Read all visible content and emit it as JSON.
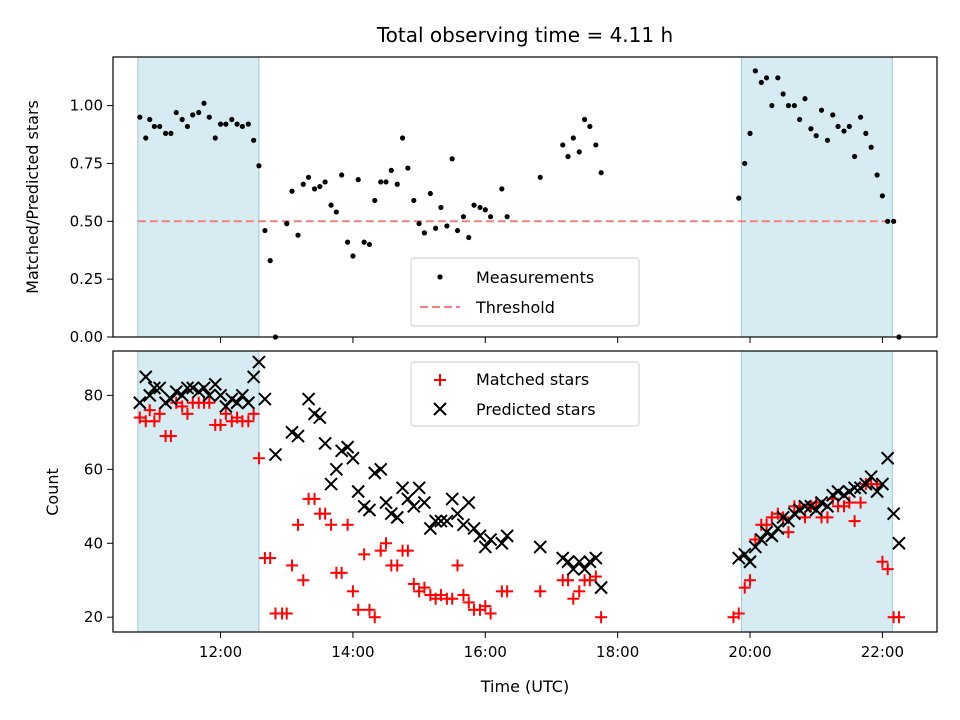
{
  "chart_data": [
    {
      "type": "scatter",
      "title": "Total observing time = 4.11 h",
      "ylabel": "Matched/Predicted stars",
      "xlim": [
        10.375,
        22.825
      ],
      "ylim": [
        0,
        1.21
      ],
      "yticks": [
        0.0,
        0.25,
        0.5,
        0.75,
        1.0
      ],
      "ytick_labels": [
        "0.00",
        "0.25",
        "0.50",
        "0.75",
        "1.00"
      ],
      "shaded_spans": [
        [
          10.75,
          12.58
        ],
        [
          19.87,
          22.15
        ]
      ],
      "threshold": 0.5,
      "legend": {
        "placement": "lower-center",
        "entries": [
          "Measurements",
          "Threshold"
        ]
      },
      "series": [
        {
          "name": "Measurements",
          "x": [
            10.78,
            10.87,
            10.93,
            11.0,
            11.08,
            11.17,
            11.25,
            11.33,
            11.42,
            11.5,
            11.58,
            11.67,
            11.75,
            11.83,
            11.92,
            12.0,
            12.08,
            12.17,
            12.25,
            12.33,
            12.42,
            12.5,
            12.58,
            12.67,
            12.75,
            12.83,
            13.0,
            13.08,
            13.17,
            13.25,
            13.33,
            13.42,
            13.5,
            13.58,
            13.67,
            13.75,
            13.83,
            13.92,
            14.0,
            14.08,
            14.17,
            14.25,
            14.33,
            14.42,
            14.5,
            14.58,
            14.67,
            14.75,
            14.83,
            14.92,
            15.0,
            15.08,
            15.17,
            15.25,
            15.33,
            15.42,
            15.5,
            15.58,
            15.67,
            15.75,
            15.83,
            15.92,
            16.0,
            16.08,
            16.25,
            16.33,
            16.83,
            17.17,
            17.25,
            17.33,
            17.42,
            17.5,
            17.58,
            17.67,
            17.75,
            19.83,
            19.92,
            20.0,
            20.08,
            20.17,
            20.25,
            20.33,
            20.42,
            20.5,
            20.58,
            20.67,
            20.75,
            20.83,
            20.92,
            21.0,
            21.08,
            21.17,
            21.25,
            21.33,
            21.42,
            21.5,
            21.58,
            21.67,
            21.75,
            21.83,
            21.92,
            22.0,
            22.08,
            22.17,
            22.25
          ],
          "y": [
            0.95,
            0.86,
            0.94,
            0.91,
            0.91,
            0.88,
            0.88,
            0.97,
            0.94,
            0.91,
            0.96,
            0.97,
            1.01,
            0.95,
            0.86,
            0.92,
            0.92,
            0.94,
            0.92,
            0.91,
            0.92,
            0.85,
            0.74,
            0.46,
            0.33,
            0.0,
            0.49,
            0.63,
            0.44,
            0.66,
            0.69,
            0.64,
            0.65,
            0.67,
            0.57,
            0.54,
            0.7,
            0.41,
            0.35,
            0.68,
            0.41,
            0.4,
            0.59,
            0.67,
            0.67,
            0.72,
            0.66,
            0.86,
            0.73,
            0.59,
            0.49,
            0.45,
            0.62,
            0.47,
            0.56,
            0.48,
            0.77,
            0.46,
            0.52,
            0.43,
            0.57,
            0.56,
            0.55,
            0.52,
            0.64,
            0.52,
            0.69,
            0.83,
            0.78,
            0.86,
            0.8,
            0.94,
            0.91,
            0.83,
            0.71,
            0.6,
            0.75,
            0.88,
            1.15,
            1.1,
            1.12,
            1.0,
            1.12,
            1.05,
            1.0,
            1.0,
            0.94,
            1.03,
            0.9,
            0.87,
            0.98,
            0.85,
            0.96,
            0.91,
            0.89,
            0.91,
            0.78,
            0.95,
            0.88,
            0.82,
            0.7,
            0.61,
            0.5,
            0.5,
            0.0
          ]
        }
      ]
    },
    {
      "type": "scatter",
      "xlabel": "Time (UTC)",
      "ylabel": "Count",
      "xlim": [
        10.375,
        22.825
      ],
      "ylim": [
        16.0,
        92.0
      ],
      "yticks": [
        20,
        40,
        60,
        80
      ],
      "ytick_labels": [
        "20",
        "40",
        "60",
        "80"
      ],
      "xticks": [
        12,
        14,
        16,
        18,
        20,
        22
      ],
      "xtick_labels": [
        "12:00",
        "14:00",
        "16:00",
        "18:00",
        "20:00",
        "22:00"
      ],
      "shaded_spans": [
        [
          10.75,
          12.58
        ],
        [
          19.87,
          22.15
        ]
      ],
      "legend": {
        "placement": "upper-center",
        "entries": [
          "Matched stars",
          "Predicted stars"
        ]
      },
      "series": [
        {
          "name": "Matched stars",
          "x": [
            10.78,
            10.87,
            10.93,
            11.0,
            11.08,
            11.17,
            11.25,
            11.33,
            11.42,
            11.5,
            11.58,
            11.67,
            11.75,
            11.83,
            11.92,
            12.0,
            12.08,
            12.17,
            12.25,
            12.33,
            12.42,
            12.5,
            12.58,
            12.67,
            12.75,
            12.83,
            12.93,
            13.0,
            13.08,
            13.17,
            13.25,
            13.33,
            13.42,
            13.5,
            13.58,
            13.67,
            13.75,
            13.83,
            13.92,
            14.0,
            14.08,
            14.17,
            14.25,
            14.33,
            14.42,
            14.5,
            14.58,
            14.67,
            14.75,
            14.83,
            14.92,
            15.0,
            15.08,
            15.17,
            15.25,
            15.33,
            15.42,
            15.5,
            15.58,
            15.67,
            15.75,
            15.83,
            15.92,
            16.0,
            16.08,
            16.25,
            16.33,
            16.83,
            17.17,
            17.25,
            17.33,
            17.42,
            17.5,
            17.58,
            17.67,
            17.75,
            19.75,
            19.83,
            19.92,
            20.0,
            20.08,
            20.17,
            20.25,
            20.33,
            20.42,
            20.5,
            20.58,
            20.67,
            20.75,
            20.83,
            20.92,
            21.0,
            21.08,
            21.17,
            21.25,
            21.33,
            21.42,
            21.5,
            21.58,
            21.67,
            21.75,
            21.83,
            21.92,
            22.0,
            22.08,
            22.17,
            22.25
          ],
          "y": [
            74,
            73,
            76,
            73,
            75,
            69,
            69,
            78,
            77,
            75,
            78,
            78,
            78,
            78,
            72,
            72,
            75,
            73,
            74,
            73,
            73,
            75,
            63,
            36,
            36,
            21,
            21,
            21,
            34,
            45,
            30,
            52,
            52,
            48,
            48,
            45,
            32,
            32,
            45,
            27,
            22,
            37,
            22,
            20,
            38,
            40,
            34,
            34,
            38,
            38,
            29,
            27,
            28,
            26,
            25,
            26,
            25,
            25,
            34,
            26,
            24,
            22,
            22,
            23,
            21,
            27,
            27,
            27,
            30,
            30,
            25,
            27,
            30,
            30,
            31,
            20,
            20,
            21,
            28,
            30,
            41,
            45,
            45,
            47,
            48,
            47,
            43,
            50,
            50,
            47,
            50,
            51,
            47,
            47,
            52,
            50,
            50,
            51,
            46,
            51,
            56,
            56,
            56,
            35,
            33,
            20,
            20
          ]
        },
        {
          "name": "Predicted stars",
          "x": [
            10.78,
            10.87,
            10.93,
            11.0,
            11.08,
            11.17,
            11.25,
            11.33,
            11.42,
            11.5,
            11.58,
            11.67,
            11.75,
            11.83,
            11.92,
            12.0,
            12.08,
            12.17,
            12.25,
            12.33,
            12.42,
            12.5,
            12.58,
            12.67,
            12.83,
            13.08,
            13.17,
            13.33,
            13.42,
            13.5,
            13.58,
            13.67,
            13.75,
            13.83,
            13.92,
            14.0,
            14.08,
            14.17,
            14.25,
            14.33,
            14.42,
            14.5,
            14.58,
            14.67,
            14.75,
            14.83,
            14.92,
            15.0,
            15.08,
            15.17,
            15.25,
            15.33,
            15.42,
            15.5,
            15.58,
            15.67,
            15.75,
            15.83,
            15.92,
            16.0,
            16.08,
            16.25,
            16.33,
            16.83,
            17.17,
            17.25,
            17.33,
            17.42,
            17.5,
            17.58,
            17.67,
            17.75,
            19.83,
            19.92,
            20.0,
            20.08,
            20.17,
            20.25,
            20.33,
            20.42,
            20.5,
            20.58,
            20.67,
            20.75,
            20.83,
            20.92,
            21.0,
            21.08,
            21.17,
            21.25,
            21.33,
            21.42,
            21.5,
            21.58,
            21.67,
            21.75,
            21.83,
            21.92,
            22.0,
            22.08,
            22.17,
            22.25
          ],
          "y": [
            78,
            85,
            80,
            82,
            82,
            78,
            79,
            81,
            80,
            82,
            82,
            81,
            82,
            80,
            83,
            80,
            77,
            79,
            78,
            80,
            78,
            85,
            89,
            79,
            64,
            70,
            69,
            79,
            75,
            74,
            67,
            56,
            60,
            65,
            66,
            63,
            54,
            50,
            49,
            59,
            60,
            51,
            48,
            47,
            55,
            52,
            50,
            55,
            51,
            44,
            46,
            46,
            46,
            52,
            48,
            45,
            51,
            44,
            42,
            39,
            41,
            40,
            42,
            39,
            36,
            35,
            33,
            35,
            33,
            35,
            36,
            28,
            36,
            37,
            35,
            39,
            41,
            43,
            42,
            44,
            47,
            46,
            48,
            49,
            50,
            50,
            49,
            51,
            50,
            53,
            54,
            53,
            54,
            55,
            55,
            56,
            58,
            54,
            56,
            63,
            48,
            40
          ]
        }
      ]
    }
  ]
}
